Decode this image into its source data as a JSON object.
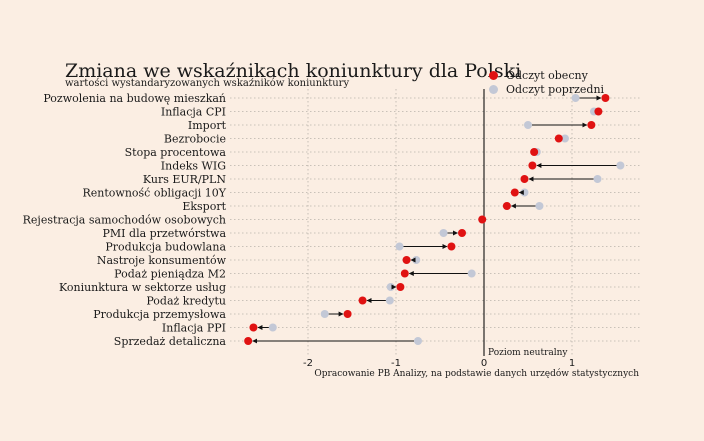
{
  "title": "Zmiana we wskaźnikach koniunktury dla Polski",
  "subtitle": "wartości wystandaryzowanych wskaźników koniunktury",
  "legend": {
    "current": "Odczyt obecny",
    "previous": "Odczyt poprzedni"
  },
  "colors": {
    "current": "#e01212",
    "previous": "#c3c8d6",
    "arrow": "#111111",
    "background": "#fbeee3"
  },
  "neutral_label": "Poziom neutralny",
  "source": "Opracowanie PB Analizy, na podstawie danych urzędów statystycznych",
  "chart_data": {
    "type": "scatter",
    "title": "Zmiana we wskaźnikach koniunktury dla Polski",
    "subtitle": "wartości wystandaryzowanych wskaźników koniunktury",
    "xlim": [
      -2.7,
      1.7
    ],
    "x_ticks": [
      -2,
      -1,
      0,
      1
    ],
    "x_tick_labels": [
      "-2",
      "-1",
      "0",
      "1"
    ],
    "grid": true,
    "legend_position": "top-right",
    "reference_line": 0,
    "categories": [
      "Pozwolenia na budowę mieszkań",
      "Inflacja CPI",
      "Import",
      "Bezrobocie",
      "Stopa procentowa",
      "Indeks WIG",
      "Kurs EUR/PLN",
      "Rentowność obligacji 10Y",
      "Eksport",
      "Rejestracja samochodów osobowych",
      "PMI dla przetwórstwa",
      "Produkcja budowlana",
      "Nastroje konsumentów",
      "Podaż pieniądza M2",
      "Koniunktura w sektorze usług",
      "Podaż kredytu",
      "Produkcja przemysłowa",
      "Inflacja PPI",
      "Sprzedaż detaliczna"
    ],
    "series": [
      {
        "name": "Odczyt obecny",
        "values": [
          1.38,
          1.3,
          1.22,
          0.85,
          0.57,
          0.55,
          0.46,
          0.35,
          0.26,
          -0.02,
          -0.25,
          -0.37,
          -0.88,
          -0.9,
          -0.95,
          -1.38,
          -1.55,
          -2.62,
          -2.68
        ]
      },
      {
        "name": "Odczyt poprzedni",
        "values": [
          1.04,
          1.25,
          0.5,
          0.92,
          0.6,
          1.55,
          1.29,
          0.46,
          0.63,
          -0.02,
          -0.46,
          -0.96,
          -0.77,
          -0.14,
          -1.06,
          -1.07,
          -1.81,
          -2.4,
          -0.75
        ]
      }
    ]
  }
}
